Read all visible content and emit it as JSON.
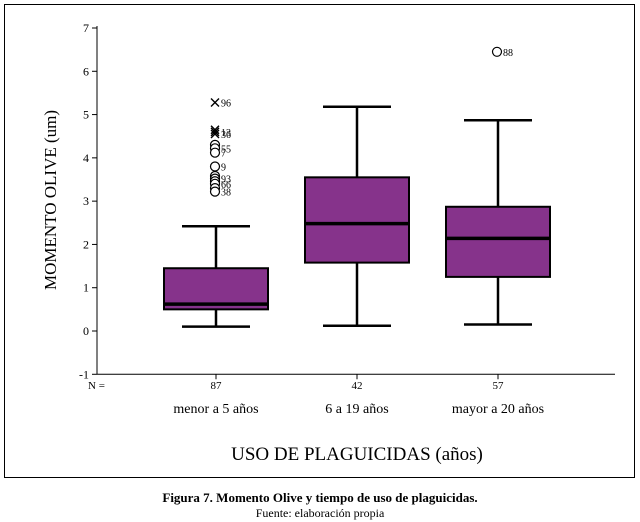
{
  "caption": "Figura 7.  Momento Olive y tiempo de uso de plaguicidas.",
  "source": "Fuente: elaboración propia",
  "colors": {
    "box_fill": "#86338b",
    "line": "#000000"
  },
  "chart_data": {
    "type": "boxplot",
    "ylabel": "MOMENTO OLIVE (um)",
    "xlabel": "USO DE PLAGUICIDAS (años)",
    "ylim": [
      -1,
      7
    ],
    "yticks": [
      -1,
      0,
      1,
      2,
      3,
      4,
      5,
      6,
      7
    ],
    "n_label": "N =",
    "grid": false,
    "groups": [
      {
        "category": "menor a 5 años",
        "n": "87",
        "whisker_low": 0.1,
        "q1": 0.5,
        "median": 0.62,
        "q3": 1.45,
        "whisker_high": 2.42,
        "outliers": [
          {
            "value": 5.28,
            "label": "96",
            "marker": "star"
          },
          {
            "value": 4.65,
            "label": "",
            "marker": "star"
          },
          {
            "value": 4.6,
            "label": "13",
            "marker": "star"
          },
          {
            "value": 4.55,
            "label": "36",
            "marker": "star"
          },
          {
            "value": 4.3,
            "label": "",
            "marker": "circle"
          },
          {
            "value": 4.22,
            "label": "55",
            "marker": "circle"
          },
          {
            "value": 4.12,
            "label": "7",
            "marker": "circle"
          },
          {
            "value": 3.8,
            "label": "9",
            "marker": "circle"
          },
          {
            "value": 3.58,
            "label": "",
            "marker": "circle"
          },
          {
            "value": 3.52,
            "label": "93",
            "marker": "circle"
          },
          {
            "value": 3.46,
            "label": "",
            "marker": "circle"
          },
          {
            "value": 3.4,
            "label": "66",
            "marker": "circle"
          },
          {
            "value": 3.3,
            "label": "",
            "marker": "circle"
          },
          {
            "value": 3.22,
            "label": "38",
            "marker": "circle"
          }
        ]
      },
      {
        "category": "6 a 19 años",
        "n": "42",
        "whisker_low": 0.12,
        "q1": 1.58,
        "median": 2.48,
        "q3": 3.55,
        "whisker_high": 5.18,
        "outliers": []
      },
      {
        "category": "mayor a 20 años",
        "n": "57",
        "whisker_low": 0.15,
        "q1": 1.25,
        "median": 2.14,
        "q3": 2.87,
        "whisker_high": 4.87,
        "outliers": [
          {
            "value": 6.45,
            "label": "88",
            "marker": "circle"
          }
        ]
      }
    ]
  }
}
